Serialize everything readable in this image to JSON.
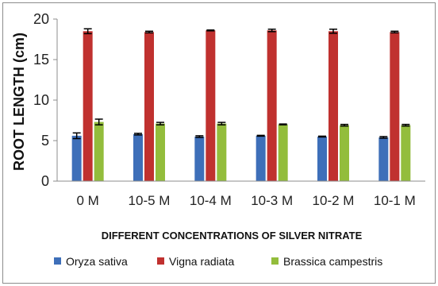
{
  "chart_data": {
    "type": "bar",
    "title": "",
    "xlabel": "DIFFERENT CONCENTRATIONS OF SILVER NITRATE",
    "ylabel": "ROOT LENGTH (cm)",
    "ylim": [
      0,
      20
    ],
    "yticks": [
      0,
      5,
      10,
      15,
      20
    ],
    "grid": false,
    "legend_position": "bottom",
    "categories": [
      "0 M",
      "10-5 M",
      "10-4 M",
      "10-3 M",
      "10-2 M",
      "10-1 M"
    ],
    "series": [
      {
        "name": "Oryza sativa",
        "color": "#3e6fb9",
        "values": [
          5.6,
          5.8,
          5.5,
          5.6,
          5.5,
          5.4
        ],
        "errors": [
          0.35,
          0.1,
          0.1,
          0.05,
          0.05,
          0.1
        ]
      },
      {
        "name": "Vigna radiata",
        "color": "#c0312f",
        "values": [
          18.5,
          18.4,
          18.6,
          18.6,
          18.5,
          18.4
        ],
        "errors": [
          0.3,
          0.1,
          0.05,
          0.15,
          0.25,
          0.1
        ]
      },
      {
        "name": "Brassica campestris",
        "color": "#93bd3c",
        "values": [
          7.3,
          7.1,
          7.1,
          7.0,
          6.9,
          6.9
        ],
        "errors": [
          0.35,
          0.15,
          0.15,
          0.05,
          0.1,
          0.1
        ]
      }
    ]
  }
}
